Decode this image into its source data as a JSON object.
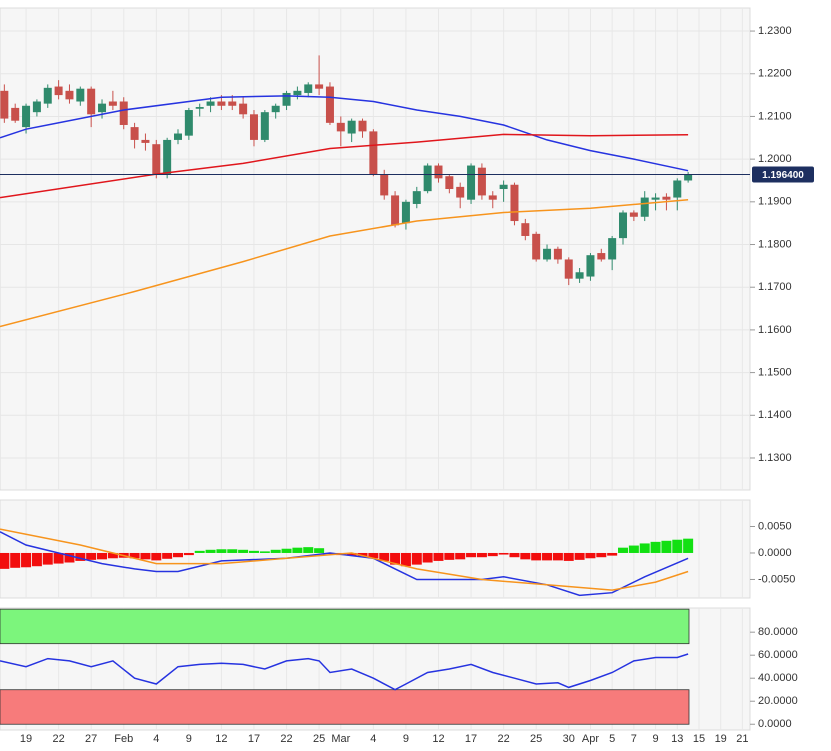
{
  "chart_data": [
    {
      "type": "candlestick",
      "x": [
        -2,
        -1,
        0,
        1,
        2,
        3,
        4,
        5,
        6,
        7,
        8,
        9,
        10,
        11,
        12,
        13,
        14,
        15,
        16,
        17,
        18,
        19,
        20,
        21,
        22,
        23,
        24,
        25,
        26,
        27,
        28,
        29,
        30,
        31,
        32,
        33,
        34,
        35,
        36,
        37,
        38,
        39,
        40,
        41,
        42,
        43,
        44,
        45,
        46,
        47,
        48,
        49,
        50,
        51,
        52,
        53,
        54,
        55,
        56,
        57,
        58,
        59,
        60,
        61
      ],
      "open": [
        1.216,
        1.212,
        1.2075,
        1.211,
        1.213,
        1.217,
        1.216,
        1.2135,
        1.2165,
        1.211,
        1.2135,
        1.2135,
        1.2075,
        1.2045,
        1.2035,
        1.1965,
        1.2045,
        1.2055,
        1.2118,
        1.2125,
        1.2135,
        1.2135,
        1.213,
        1.2105,
        1.2045,
        1.211,
        1.2125,
        1.215,
        1.2155,
        1.2175,
        1.217,
        1.2085,
        1.206,
        1.209,
        1.2065,
        1.1965,
        1.1915,
        1.185,
        1.1895,
        1.1925,
        1.1985,
        1.196,
        1.1935,
        1.1905,
        1.198,
        1.1915,
        1.193,
        1.194,
        1.185,
        1.1825,
        1.1765,
        1.179,
        1.1765,
        1.172,
        1.1725,
        1.178,
        1.1765,
        1.1815,
        1.1875,
        1.1865,
        1.1905,
        1.1912,
        1.191,
        1.195
      ],
      "high": [
        1.2175,
        1.213,
        1.213,
        1.214,
        1.2175,
        1.2185,
        1.2175,
        1.217,
        1.217,
        1.214,
        1.216,
        1.2145,
        1.2085,
        1.206,
        1.2045,
        1.205,
        1.207,
        1.212,
        1.213,
        1.2145,
        1.215,
        1.215,
        1.2145,
        1.2115,
        1.2115,
        1.213,
        1.216,
        1.217,
        1.218,
        1.2243,
        1.218,
        1.21,
        1.2095,
        1.2095,
        1.207,
        1.1975,
        1.1925,
        1.1905,
        1.1935,
        1.199,
        1.199,
        1.1965,
        1.1945,
        1.199,
        1.199,
        1.1925,
        1.195,
        1.1945,
        1.186,
        1.183,
        1.18,
        1.1795,
        1.177,
        1.1745,
        1.178,
        1.179,
        1.182,
        1.188,
        1.188,
        1.1925,
        1.192,
        1.192,
        1.1955,
        1.197
      ],
      "low": [
        1.2085,
        1.2085,
        1.206,
        1.21,
        1.212,
        1.214,
        1.213,
        1.2125,
        1.2075,
        1.2095,
        1.2115,
        1.207,
        1.2025,
        1.202,
        1.1955,
        1.1955,
        1.2035,
        1.2045,
        1.21,
        1.211,
        1.2115,
        1.2115,
        1.2095,
        1.203,
        1.204,
        1.2095,
        1.2115,
        1.214,
        1.2145,
        1.215,
        1.208,
        1.203,
        1.204,
        1.205,
        1.196,
        1.1905,
        1.184,
        1.1835,
        1.1885,
        1.192,
        1.1945,
        1.192,
        1.1885,
        1.1895,
        1.1905,
        1.1885,
        1.19,
        1.1845,
        1.181,
        1.176,
        1.176,
        1.1755,
        1.1705,
        1.171,
        1.1715,
        1.176,
        1.174,
        1.18,
        1.1855,
        1.1855,
        1.188,
        1.188,
        1.188,
        1.1945
      ],
      "close": [
        1.2095,
        1.209,
        1.2125,
        1.2135,
        1.2167,
        1.215,
        1.214,
        1.2165,
        1.2105,
        1.213,
        1.2125,
        1.208,
        1.2045,
        1.2038,
        1.1965,
        1.2045,
        1.206,
        1.2115,
        1.2122,
        1.2135,
        1.2125,
        1.2125,
        1.2105,
        1.2045,
        1.211,
        1.2125,
        1.2155,
        1.216,
        1.2175,
        1.2165,
        1.2085,
        1.2065,
        1.209,
        1.2065,
        1.1965,
        1.1915,
        1.1845,
        1.19,
        1.1925,
        1.1985,
        1.1955,
        1.193,
        1.191,
        1.1985,
        1.1915,
        1.1905,
        1.194,
        1.1855,
        1.182,
        1.1765,
        1.179,
        1.1765,
        1.172,
        1.1735,
        1.1775,
        1.1765,
        1.1815,
        1.1875,
        1.1865,
        1.191,
        1.191,
        1.1905,
        1.195,
        1.1964
      ],
      "up_color": "#2f8a6c",
      "down_color": "#c8504b",
      "lines": [
        {
          "color": "#2633e0",
          "x": [
            -2.4,
            0,
            9,
            18,
            24,
            28,
            32,
            36,
            40,
            44,
            48,
            52,
            56,
            61
          ],
          "values": [
            1.205,
            1.207,
            1.2115,
            1.2145,
            1.2148,
            1.2145,
            1.2135,
            1.2115,
            1.21,
            1.208,
            1.2045,
            1.202,
            1.2,
            1.1973
          ]
        },
        {
          "color": "#e0161c",
          "x": [
            -2.4,
            12,
            20,
            28,
            36,
            44,
            52,
            61
          ],
          "values": [
            1.191,
            1.1965,
            1.199,
            1.2025,
            1.204,
            1.2058,
            1.2055,
            1.2057
          ]
        },
        {
          "color": "#f7941d",
          "x": [
            -2.4,
            10,
            20,
            28,
            36,
            44,
            52,
            61
          ],
          "values": [
            1.1608,
            1.169,
            1.176,
            1.182,
            1.1855,
            1.1875,
            1.1885,
            1.1905
          ]
        }
      ],
      "price_line": {
        "value": 1.1964,
        "label": "1.196400",
        "color": "#1d2f60"
      },
      "xlim": [
        -2.4,
        66.7
      ],
      "ylim": [
        1.1225,
        1.2354
      ],
      "grid": true,
      "yticks": [
        {
          "value": 1.13,
          "label": "1.1300"
        },
        {
          "value": 1.14,
          "label": "1.1400"
        },
        {
          "value": 1.15,
          "label": "1.1500"
        },
        {
          "value": 1.16,
          "label": "1.1600"
        },
        {
          "value": 1.17,
          "label": "1.1700"
        },
        {
          "value": 1.18,
          "label": "1.1800"
        },
        {
          "value": 1.19,
          "label": "1.1900"
        },
        {
          "value": 1.2,
          "label": "1.2000"
        },
        {
          "value": 1.21,
          "label": "1.2100"
        },
        {
          "value": 1.22,
          "label": "1.2200"
        },
        {
          "value": 1.23,
          "label": "1.2300"
        }
      ]
    },
    {
      "type": "bar",
      "x": [
        -2,
        -1,
        0,
        1,
        2,
        3,
        4,
        5,
        6,
        7,
        8,
        9,
        10,
        11,
        12,
        13,
        14,
        15,
        16,
        17,
        18,
        19,
        20,
        21,
        22,
        23,
        24,
        25,
        26,
        27,
        28,
        29,
        30,
        31,
        32,
        33,
        34,
        35,
        36,
        37,
        38,
        39,
        40,
        41,
        42,
        43,
        44,
        45,
        46,
        47,
        48,
        49,
        50,
        51,
        52,
        53,
        54,
        55,
        56,
        57,
        58,
        59,
        60,
        61
      ],
      "values": [
        -0.003,
        -0.0028,
        -0.0027,
        -0.0025,
        -0.0022,
        -0.002,
        -0.0018,
        -0.0015,
        -0.0013,
        -0.0012,
        -0.001,
        -0.0009,
        -0.001,
        -0.0012,
        -0.0014,
        -0.0011,
        -0.0008,
        -0.0004,
        0.0004,
        0.0006,
        0.0007,
        0.0007,
        0.0006,
        0.0004,
        0.0003,
        0.0006,
        0.0008,
        0.001,
        0.0011,
        0.0009,
        -0.0002,
        -0.0004,
        -0.0005,
        -0.0006,
        -0.001,
        -0.0015,
        -0.0022,
        -0.0025,
        -0.0022,
        -0.0018,
        -0.0015,
        -0.0013,
        -0.0012,
        -0.0008,
        -0.0008,
        -0.0006,
        -0.0003,
        -0.0008,
        -0.0012,
        -0.0014,
        -0.0014,
        -0.0014,
        -0.0015,
        -0.0013,
        -0.001,
        -0.0008,
        -0.0005,
        0.001,
        0.0014,
        0.0018,
        0.0021,
        0.0023,
        0.0025,
        0.0027
      ],
      "positive_color": "#12e012",
      "negative_color": "#f20d0d",
      "lines": [
        {
          "color": "#2633e0",
          "x": [
            -2.4,
            0,
            3,
            7,
            10,
            12,
            14,
            18,
            24,
            28,
            32,
            34,
            36,
            40,
            42,
            44,
            48,
            51,
            54,
            57,
            61
          ],
          "values": [
            0.004,
            0.0015,
            0.0,
            -0.002,
            -0.003,
            -0.0035,
            -0.0035,
            -0.0015,
            -0.001,
            0.0,
            -0.001,
            -0.003,
            -0.005,
            -0.005,
            -0.005,
            -0.0045,
            -0.006,
            -0.008,
            -0.0075,
            -0.0045,
            -0.001
          ]
        },
        {
          "color": "#f7941d",
          "x": [
            -2.4,
            5,
            12,
            18,
            24,
            30,
            36,
            42,
            48,
            54,
            58,
            61
          ],
          "values": [
            0.0045,
            0.0015,
            -0.002,
            -0.002,
            -0.001,
            0.0,
            -0.003,
            -0.005,
            -0.006,
            -0.007,
            -0.0055,
            -0.0035
          ]
        }
      ],
      "xlim": [
        -2.4,
        66.7
      ],
      "ylim": [
        -0.0085,
        0.01
      ],
      "yticks": [
        {
          "value": 0.005,
          "label": "0.0050"
        },
        {
          "value": 0,
          "label": "0.0000"
        },
        {
          "value": -0.005,
          "label": "-0.0050"
        }
      ]
    },
    {
      "type": "line",
      "series": [
        {
          "color": "#2633e0",
          "x": [
            -2.4,
            0,
            2,
            4,
            6,
            8,
            10,
            12,
            14,
            16,
            18,
            20,
            22,
            24,
            26,
            27,
            28,
            30,
            32,
            34,
            35,
            37,
            39,
            41,
            43,
            45,
            47,
            49,
            50,
            52,
            54,
            56,
            58,
            60,
            61
          ],
          "values": [
            55,
            50,
            57,
            55,
            50,
            55,
            40,
            35,
            50,
            52,
            53,
            52,
            48,
            55,
            57,
            55,
            45,
            48,
            40,
            30,
            35,
            45,
            48,
            52,
            45,
            40,
            35,
            36,
            32,
            38,
            45,
            55,
            58,
            58,
            61
          ]
        }
      ],
      "bands": [
        {
          "from": 70,
          "to": 100,
          "color": "#7cf57c"
        },
        {
          "from": 0,
          "to": 30,
          "color": "#f77b7b"
        }
      ],
      "xlim": [
        -2.4,
        66.7
      ],
      "ylim": [
        -5,
        101
      ],
      "yticks": [
        {
          "value": 80,
          "label": "80.0000"
        },
        {
          "value": 60,
          "label": "60.0000"
        },
        {
          "value": 40,
          "label": "40.0000"
        },
        {
          "value": 20,
          "label": "20.0000"
        },
        {
          "value": 0,
          "label": "0.0000"
        }
      ],
      "xticks": [
        {
          "value": 0,
          "label": "19"
        },
        {
          "value": 3,
          "label": "22"
        },
        {
          "value": 6,
          "label": "27"
        },
        {
          "value": 9,
          "label": "Feb"
        },
        {
          "value": 12,
          "label": "4"
        },
        {
          "value": 15,
          "label": "9"
        },
        {
          "value": 18,
          "label": "12"
        },
        {
          "value": 21,
          "label": "17"
        },
        {
          "value": 24,
          "label": "22"
        },
        {
          "value": 27,
          "label": "25"
        },
        {
          "value": 29,
          "label": "Mar"
        },
        {
          "value": 32,
          "label": "4"
        },
        {
          "value": 35,
          "label": "9"
        },
        {
          "value": 38,
          "label": "12"
        },
        {
          "value": 41,
          "label": "17"
        },
        {
          "value": 44,
          "label": "22"
        },
        {
          "value": 47,
          "label": "25"
        },
        {
          "value": 50,
          "label": "30"
        },
        {
          "value": 52,
          "label": "Apr"
        },
        {
          "value": 54,
          "label": "5"
        },
        {
          "value": 56,
          "label": "7"
        },
        {
          "value": 58,
          "label": "9"
        },
        {
          "value": 60,
          "label": "13"
        },
        {
          "value": 62,
          "label": "15"
        },
        {
          "value": 64,
          "label": "19"
        },
        {
          "value": 66,
          "label": "21"
        }
      ]
    }
  ]
}
